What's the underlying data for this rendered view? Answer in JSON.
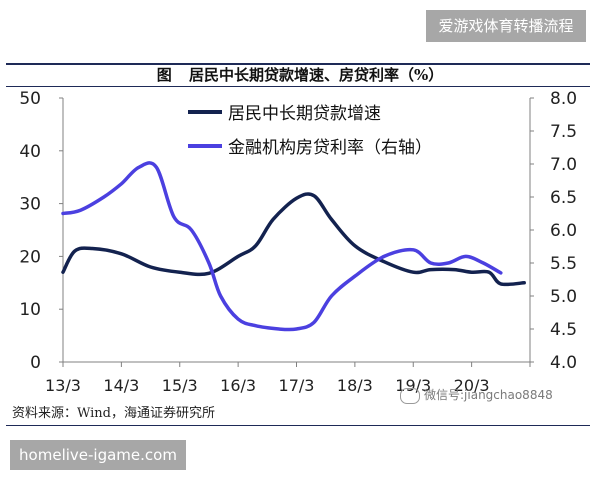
{
  "watermark_top": "爱游戏体育转播流程",
  "watermark_bottom": "homelive-igame.com",
  "wechat_text": "微信号:jiangchao8848",
  "source_text": "资料来源：Wind，海通证券研究所",
  "colors": {
    "series1": "#13224f",
    "series2": "#4b40e0",
    "axis": "#808080"
  },
  "chart_data": {
    "type": "line",
    "title_prefix": "图",
    "title": "居民中长期贷款增速、房贷利率（%）",
    "x_ticks": [
      "13/3",
      "14/3",
      "15/3",
      "16/3",
      "17/3",
      "18/3",
      "19/3",
      "20/3"
    ],
    "ylim_left": [
      0,
      50
    ],
    "yticks_left": [
      "50",
      "40",
      "30",
      "20",
      "10",
      "0"
    ],
    "ylim_right": [
      4.0,
      8.0
    ],
    "yticks_right": [
      "8.0",
      "7.5",
      "7.0",
      "6.5",
      "6.0",
      "5.5",
      "5.0",
      "4.5",
      "4.0"
    ],
    "legend_position": "top-center",
    "series": [
      {
        "name": "居民中长期贷款增速",
        "axis": "left",
        "x": [
          0,
          0.2,
          0.5,
          1.0,
          1.5,
          2.0,
          2.5,
          3.0,
          3.3,
          3.6,
          4.0,
          4.3,
          4.6,
          5.0,
          5.5,
          6.0,
          6.3,
          6.7,
          7.0,
          7.3,
          7.5,
          7.9
        ],
        "y": [
          17,
          21,
          21.5,
          20.5,
          18,
          17,
          16.8,
          20,
          22,
          27,
          31,
          31.5,
          27,
          22,
          19,
          17,
          17.5,
          17.5,
          17,
          17,
          14.8,
          15
        ]
      },
      {
        "name": "金融机构房贷利率（右轴）",
        "axis": "right",
        "x": [
          0,
          0.3,
          0.7,
          1.0,
          1.3,
          1.6,
          1.9,
          2.2,
          2.5,
          2.7,
          3.0,
          3.3,
          3.7,
          4.0,
          4.3,
          4.6,
          5.0,
          5.5,
          6.0,
          6.3,
          6.6,
          6.9,
          7.2,
          7.5
        ],
        "y": [
          6.25,
          6.3,
          6.5,
          6.7,
          6.95,
          6.95,
          6.2,
          6.0,
          5.5,
          5.0,
          4.65,
          4.55,
          4.5,
          4.5,
          4.6,
          5.0,
          5.3,
          5.6,
          5.7,
          5.5,
          5.5,
          5.6,
          5.5,
          5.35
        ]
      }
    ]
  }
}
